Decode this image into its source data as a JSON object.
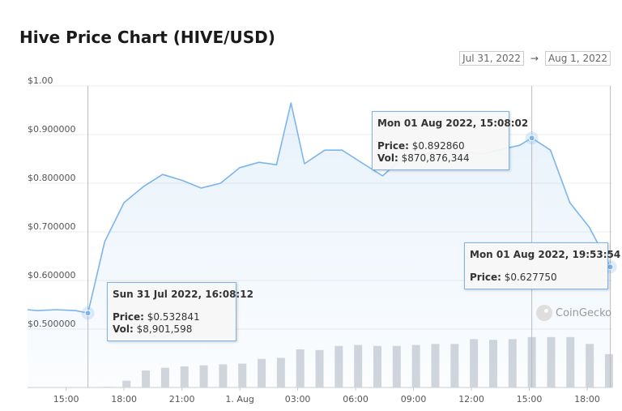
{
  "header": {
    "title": "Hive Price Chart (HIVE/USD)",
    "range_from": "Jul 31, 2022",
    "range_arrow": "→",
    "range_to": "Aug 1, 2022"
  },
  "watermark": "CoinGecko",
  "tooltips": [
    {
      "header": "Sun 31 Jul 2022, 16:08:12",
      "price_label": "Price:",
      "price": "$0.532841",
      "vol_label": "Vol:",
      "vol": "$8,901,598"
    },
    {
      "header": "Mon 01 Aug 2022, 15:08:02",
      "price_label": "Price:",
      "price": "$0.892860",
      "vol_label": "Vol:",
      "vol": "$870,876,344"
    },
    {
      "header": "Mon 01 Aug 2022, 19:53:54",
      "price_label": "Price:",
      "price": "$0.627750"
    }
  ],
  "colors": {
    "line": "#7cb5ec",
    "volume": "#d3d6db",
    "grid": "#ececec"
  },
  "chart_data": {
    "type": "line",
    "title": "Hive Price Chart (HIVE/USD)",
    "x_unit": "hours since Jul 31, 2022 00:00",
    "xlim": [
      13.0,
      43.3
    ],
    "x_tick_values": [
      15,
      18,
      21,
      24,
      27,
      30,
      33,
      36,
      39,
      42
    ],
    "x_tick_labels": [
      "15:00",
      "18:00",
      "21:00",
      "1. Aug",
      "03:00",
      "06:00",
      "09:00",
      "12:00",
      "15:00",
      "18:00"
    ],
    "ylim": [
      0.4,
      1.0
    ],
    "y_tick_values": [
      0.5,
      0.6,
      0.7,
      0.8,
      0.9,
      1.0
    ],
    "y_tick_labels": [
      "$0.500000",
      "$0.600000",
      "$0.700000",
      "$0.800000",
      "$0.900000",
      "$1.00"
    ],
    "grid": true,
    "series": [
      {
        "name": "Price",
        "x": [
          13.0,
          13.5,
          14.5,
          15.5,
          16.13,
          17.0,
          18.0,
          19.0,
          20.0,
          21.0,
          22.0,
          23.0,
          24.0,
          25.0,
          25.9,
          26.65,
          27.35,
          28.4,
          29.3,
          30.4,
          31.4,
          32.5,
          33.5,
          34.4,
          35.5,
          36.5,
          37.4,
          38.5,
          39.13,
          40.1,
          41.1,
          42.1,
          43.2
        ],
        "y": [
          0.54,
          0.538,
          0.54,
          0.538,
          0.533,
          0.68,
          0.76,
          0.793,
          0.818,
          0.806,
          0.79,
          0.8,
          0.832,
          0.843,
          0.838,
          0.965,
          0.84,
          0.868,
          0.868,
          0.84,
          0.815,
          0.855,
          0.86,
          0.865,
          0.865,
          0.86,
          0.868,
          0.878,
          0.893,
          0.868,
          0.76,
          0.71,
          0.628
        ]
      }
    ],
    "volume_series": {
      "name": "Vol",
      "x": [
        17.13,
        18.13,
        19.13,
        20.13,
        21.13,
        22.13,
        23.13,
        24.13,
        25.13,
        26.13,
        27.13,
        28.13,
        29.13,
        30.13,
        31.13,
        32.13,
        33.13,
        34.13,
        35.13,
        36.13,
        37.13,
        38.13,
        39.13,
        40.13,
        41.13,
        42.13,
        43.13
      ],
      "values": [
        2,
        20,
        50,
        58,
        62,
        65,
        68,
        70,
        84,
        87,
        112,
        110,
        122,
        125,
        122,
        122,
        125,
        128,
        128,
        142,
        140,
        142,
        148,
        148,
        148,
        128,
        98
      ],
      "unit": "relative height (0-160 scale)"
    },
    "crosshairs_x": [
      16.13,
      39.13,
      43.2
    ]
  }
}
